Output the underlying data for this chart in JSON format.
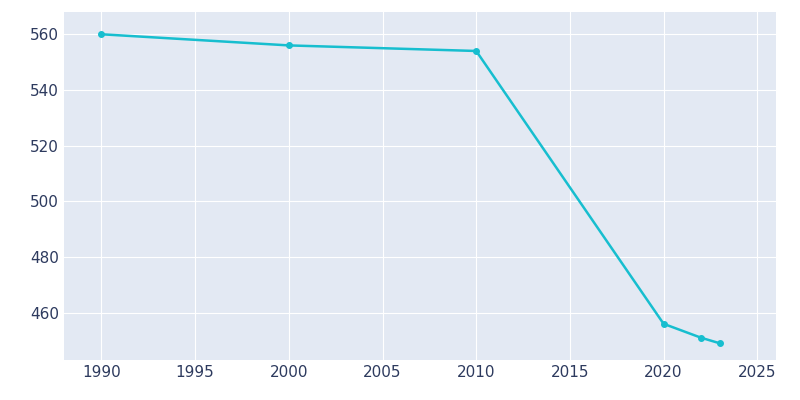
{
  "years": [
    1990,
    2000,
    2010,
    2020,
    2022,
    2023
  ],
  "population": [
    560,
    556,
    554,
    456,
    451,
    449
  ],
  "line_color": "#17BECF",
  "marker_color": "#17BECF",
  "fig_bg_color": "#FFFFFF",
  "plot_bg_color": "#E3E9F3",
  "grid_color": "#FFFFFF",
  "text_color": "#2D3A5E",
  "xlim": [
    1988,
    2026
  ],
  "ylim": [
    443,
    568
  ],
  "xticks": [
    1990,
    1995,
    2000,
    2005,
    2010,
    2015,
    2020,
    2025
  ],
  "yticks": [
    460,
    480,
    500,
    520,
    540,
    560
  ],
  "marker_size": 4,
  "line_width": 1.8,
  "tick_fontsize": 11
}
